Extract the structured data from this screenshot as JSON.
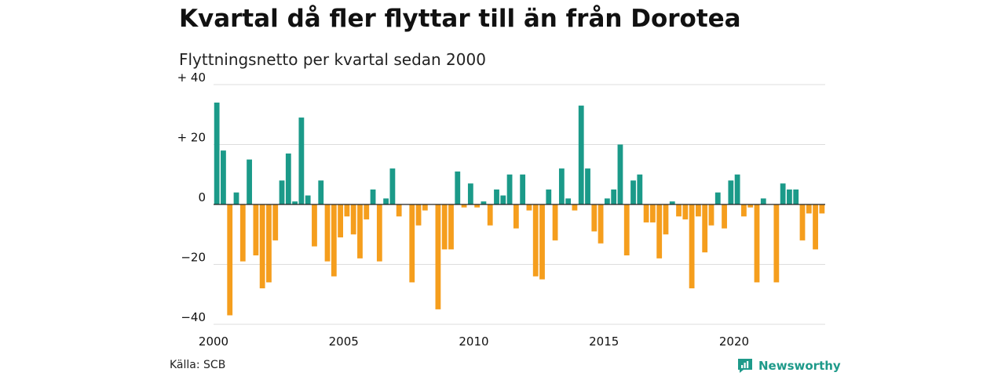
{
  "title": "Kvartal då fler flyttar till än från Dorotea",
  "subtitle": "Flyttningsnetto per kvartal sedan 2000",
  "source": "Källa: SCB",
  "brand": {
    "name": "Newsworthy",
    "icon": "newsworthy-logo-icon",
    "color": "#1e9a8a"
  },
  "colors": {
    "positive": "#1b9a89",
    "negative": "#f59e1d",
    "grid": "#dddddd",
    "zero": "#222222"
  },
  "chart_data": {
    "type": "bar",
    "ylim": [
      -40,
      40
    ],
    "y_ticks": [
      {
        "value": 40,
        "label": "+ 40"
      },
      {
        "value": 20,
        "label": "+ 20"
      },
      {
        "value": 0,
        "label": "0"
      },
      {
        "value": -20,
        "label": "−20"
      },
      {
        "value": -40,
        "label": "−40"
      }
    ],
    "x_ticks": [
      "2000",
      "2005",
      "2010",
      "2015",
      "2020"
    ],
    "start_year": 2000,
    "periods": "quarterly",
    "grid": true,
    "values": [
      34,
      18,
      -37,
      4,
      -19,
      15,
      -17,
      -28,
      -26,
      -12,
      8,
      17,
      1,
      29,
      3,
      -14,
      8,
      -19,
      -24,
      -11,
      -4,
      -10,
      -18,
      -5,
      5,
      -19,
      2,
      12,
      -4,
      0,
      -26,
      -7,
      -2,
      0,
      -35,
      -15,
      -15,
      11,
      -1,
      7,
      -1,
      1,
      -7,
      5,
      3,
      10,
      -8,
      10,
      -2,
      -24,
      -25,
      5,
      -12,
      12,
      2,
      -2,
      33,
      12,
      -9,
      -13,
      2,
      5,
      20,
      -17,
      8,
      10,
      -6,
      -6,
      -18,
      -10,
      1,
      -4,
      -5,
      -28,
      -4,
      -16,
      -7,
      4,
      -8,
      8,
      10,
      -4,
      -1,
      -26,
      2,
      0,
      -26,
      7,
      5,
      5,
      -12,
      -3,
      -15,
      -3
    ]
  }
}
